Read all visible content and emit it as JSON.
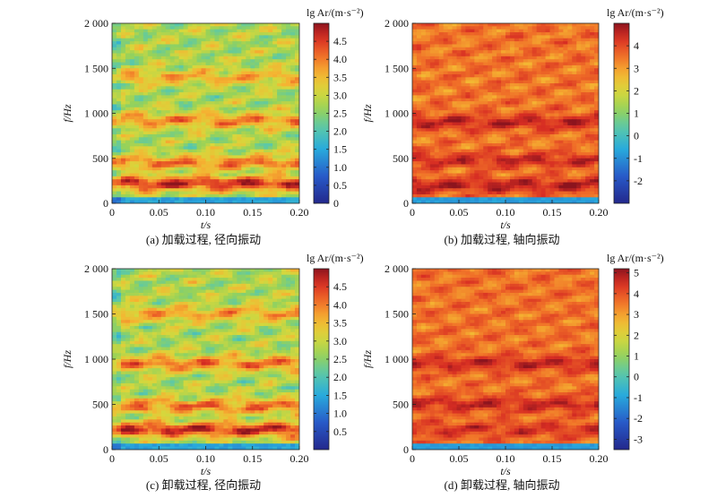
{
  "chart_data": [
    {
      "type": "heatmap",
      "caption": "(a) 加载过程, 径向振动",
      "xlabel": "t/s",
      "ylabel": "f/Hz",
      "colorbar_label": "lg Ar/(m·s⁻²)",
      "xlim": [
        0,
        0.2
      ],
      "ylim": [
        0,
        2000
      ],
      "x_ticks": [
        "0",
        "0.05",
        "0.10",
        "0.15",
        "0.20"
      ],
      "y_ticks": [
        "0",
        "500",
        "1 000",
        "1 500",
        "2 000"
      ],
      "colorbar_range": [
        0,
        5.0
      ],
      "colorbar_ticks": [
        "0",
        "0.5",
        "1.0",
        "1.5",
        "2.0",
        "2.5",
        "3.0",
        "3.5",
        "4.0",
        "4.5"
      ],
      "bands": [
        {
          "freq": 220,
          "level": 4.6
        },
        {
          "freq": 450,
          "level": 4.0
        },
        {
          "freq": 920,
          "level": 3.9
        },
        {
          "freq": 1400,
          "level": 3.6
        }
      ],
      "background_level": 2.8
    },
    {
      "type": "heatmap",
      "caption": "(b) 加载过程, 轴向振动",
      "xlabel": "t/s",
      "ylabel": "f/Hz",
      "colorbar_label": "lg Ar/(m·s⁻²)",
      "xlim": [
        0,
        0.2
      ],
      "ylim": [
        0,
        2000
      ],
      "x_ticks": [
        "0",
        "0.05",
        "0.10",
        "0.15",
        "0.20"
      ],
      "y_ticks": [
        "0",
        "500",
        "1 000",
        "1 500",
        "2 000"
      ],
      "colorbar_range": [
        -3,
        5
      ],
      "colorbar_ticks": [
        "-2",
        "-1",
        "0",
        "1",
        "2",
        "3",
        "4"
      ],
      "bands": [
        {
          "freq": 200,
          "level": 4.6
        },
        {
          "freq": 480,
          "level": 4.4
        },
        {
          "freq": 900,
          "level": 4.5
        }
      ],
      "background_level": 3.5
    },
    {
      "type": "heatmap",
      "caption": "(c) 卸载过程, 径向振动",
      "xlabel": "t/s",
      "ylabel": "f/Hz",
      "colorbar_label": "lg Ar/(m·s⁻²)",
      "xlim": [
        0,
        0.2
      ],
      "ylim": [
        0,
        2000
      ],
      "x_ticks": [
        "0",
        "0.05",
        "0.10",
        "0.15",
        "0.20"
      ],
      "y_ticks": [
        "0",
        "500",
        "1 000",
        "1 500",
        "2 000"
      ],
      "colorbar_range": [
        0,
        5.0
      ],
      "colorbar_ticks": [
        "0.5",
        "1.0",
        "1.5",
        "2.0",
        "2.5",
        "3.0",
        "3.5",
        "4.0",
        "4.5"
      ],
      "bands": [
        {
          "freq": 220,
          "level": 4.6
        },
        {
          "freq": 480,
          "level": 4.0
        },
        {
          "freq": 950,
          "level": 4.0
        },
        {
          "freq": 1500,
          "level": 3.7
        }
      ],
      "background_level": 2.8
    },
    {
      "type": "heatmap",
      "caption": "(d) 卸载过程, 轴向振动",
      "xlabel": "t/s",
      "ylabel": "f/Hz",
      "colorbar_label": "lg Ar/(m·s⁻²)",
      "xlim": [
        0,
        0.2
      ],
      "ylim": [
        0,
        2000
      ],
      "x_ticks": [
        "0",
        "0.05",
        "0.10",
        "0.15",
        "0.20"
      ],
      "y_ticks": [
        "0",
        "500",
        "1 000",
        "1 500",
        "2 000"
      ],
      "colorbar_range": [
        -3.5,
        5.2
      ],
      "colorbar_ticks": [
        "-3",
        "-2",
        "-1",
        "0",
        "1",
        "2",
        "3",
        "4",
        "5"
      ],
      "bands": [
        {
          "freq": 220,
          "level": 4.4
        },
        {
          "freq": 500,
          "level": 4.6
        },
        {
          "freq": 950,
          "level": 4.6
        }
      ],
      "background_level": 3.6
    }
  ]
}
